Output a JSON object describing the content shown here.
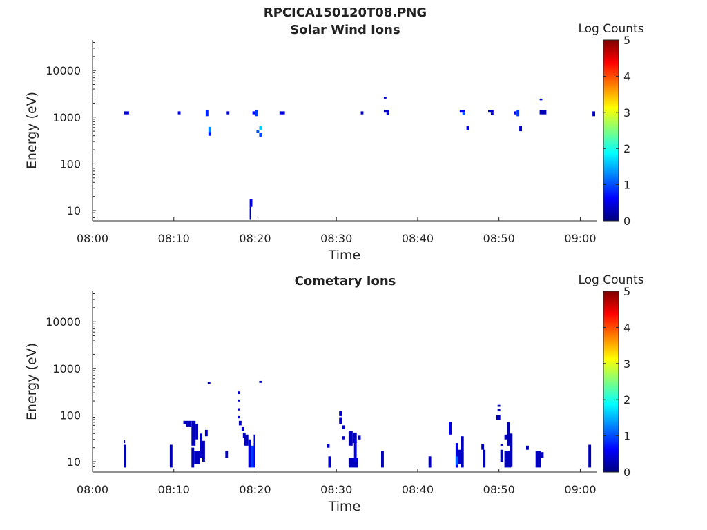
{
  "figure_title": "RPCICA150120T08.PNG",
  "colors": {
    "colormap": [
      "#00007f",
      "#0000ff",
      "#007fff",
      "#00ffff",
      "#7fff7f",
      "#ffff00",
      "#ff7f00",
      "#ff0000",
      "#7f0000"
    ],
    "axis": "#262626",
    "background": "#ffffff"
  },
  "chart_data": [
    {
      "type": "heatmap",
      "title": "Solar Wind Ions",
      "xlabel": "Time",
      "ylabel": "Energy (eV)",
      "x_scale": "time",
      "y_scale": "log",
      "xlim": [
        "08:00",
        "09:02"
      ],
      "ylim": [
        6,
        45000
      ],
      "x_ticks": [
        "08:00",
        "08:10",
        "08:20",
        "08:30",
        "08:40",
        "08:50",
        "09:00"
      ],
      "y_ticks": [
        10,
        100,
        1000,
        10000
      ],
      "y_tick_labels": [
        "10",
        "100",
        "1000",
        "10000"
      ],
      "colorbar": {
        "label": "Log Counts",
        "min": 0,
        "max": 5,
        "ticks": [
          "0",
          "1",
          "2",
          "3",
          "4",
          "5"
        ]
      },
      "cells": [
        {
          "t": "08:03:50",
          "t2": "08:04:30",
          "e": 1150,
          "e2": 1330,
          "v": 0.4
        },
        {
          "t": "08:10:30",
          "t2": "08:10:50",
          "e": 1150,
          "e2": 1330,
          "v": 0.5
        },
        {
          "t": "08:13:55",
          "t2": "08:14:15",
          "e": 1050,
          "e2": 1400,
          "v": 0.8
        },
        {
          "t": "08:14:15",
          "t2": "08:14:35",
          "e": 480,
          "e2": 620,
          "v": 1.3
        },
        {
          "t": "08:14:15",
          "t2": "08:14:35",
          "e": 400,
          "e2": 480,
          "v": 0.7
        },
        {
          "t": "08:16:30",
          "t2": "08:16:50",
          "e": 1150,
          "e2": 1330,
          "v": 0.4
        },
        {
          "t": "08:19:40",
          "t2": "08:20:00",
          "e": 1150,
          "e2": 1330,
          "v": 0.6
        },
        {
          "t": "08:20:00",
          "t2": "08:20:20",
          "e": 1050,
          "e2": 1400,
          "v": 0.9
        },
        {
          "t": "08:20:10",
          "t2": "08:20:30",
          "e": 470,
          "e2": 520,
          "v": 1.0
        },
        {
          "t": "08:20:30",
          "t2": "08:20:50",
          "e": 540,
          "e2": 640,
          "v": 1.6
        },
        {
          "t": "08:20:30",
          "t2": "08:20:50",
          "e": 380,
          "e2": 470,
          "v": 1.0
        },
        {
          "t": "08:23:00",
          "t2": "08:23:40",
          "e": 1150,
          "e2": 1330,
          "v": 0.5
        },
        {
          "t": "08:19:20",
          "t2": "08:19:40",
          "e": 12,
          "e2": 17.5,
          "v": 0.5
        },
        {
          "t": "08:19:20",
          "t2": "08:19:32",
          "e": 6.3,
          "e2": 12,
          "v": 0.2
        },
        {
          "t": "08:33:00",
          "t2": "08:33:20",
          "e": 1150,
          "e2": 1330,
          "v": 0.4
        },
        {
          "t": "08:35:50",
          "t2": "08:36:10",
          "e": 2500,
          "e2": 2750,
          "v": 0.4
        },
        {
          "t": "08:35:50",
          "t2": "08:36:30",
          "e": 1250,
          "e2": 1420,
          "v": 0.3
        },
        {
          "t": "08:36:10",
          "t2": "08:36:30",
          "e": 1100,
          "e2": 1250,
          "v": 0.3
        },
        {
          "t": "08:45:10",
          "t2": "08:45:50",
          "e": 1250,
          "e2": 1420,
          "v": 0.6
        },
        {
          "t": "08:45:30",
          "t2": "08:45:50",
          "e": 1100,
          "e2": 1250,
          "v": 1.0
        },
        {
          "t": "08:46:00",
          "t2": "08:46:20",
          "e": 520,
          "e2": 640,
          "v": 0.4
        },
        {
          "t": "08:48:40",
          "t2": "08:49:20",
          "e": 1250,
          "e2": 1420,
          "v": 0.4
        },
        {
          "t": "08:49:00",
          "t2": "08:49:20",
          "e": 1100,
          "e2": 1250,
          "v": 0.4
        },
        {
          "t": "08:51:50",
          "t2": "08:52:10",
          "e": 1150,
          "e2": 1330,
          "v": 0.6
        },
        {
          "t": "08:52:10",
          "t2": "08:52:30",
          "e": 1050,
          "e2": 1420,
          "v": 0.9
        },
        {
          "t": "08:52:30",
          "t2": "08:52:50",
          "e": 500,
          "e2": 650,
          "v": 0.4
        },
        {
          "t": "08:55:00",
          "t2": "08:55:20",
          "e": 2300,
          "e2": 2500,
          "v": 0.4
        },
        {
          "t": "08:55:00",
          "t2": "08:55:50",
          "e": 1150,
          "e2": 1420,
          "v": 0.3
        },
        {
          "t": "09:01:30",
          "t2": "09:01:50",
          "e": 1050,
          "e2": 1330,
          "v": 0.4
        }
      ]
    },
    {
      "type": "heatmap",
      "title": "Cometary Ions",
      "xlabel": "Time",
      "ylabel": "Energy (eV)",
      "x_scale": "time",
      "y_scale": "log",
      "xlim": [
        "08:00",
        "09:02"
      ],
      "ylim": [
        6,
        45000
      ],
      "x_ticks": [
        "08:00",
        "08:10",
        "08:20",
        "08:30",
        "08:40",
        "08:50",
        "09:00"
      ],
      "y_ticks": [
        10,
        100,
        1000,
        10000
      ],
      "y_tick_labels": [
        "10",
        "100",
        "1000",
        "10000"
      ],
      "colorbar": {
        "label": "Log Counts",
        "min": 0,
        "max": 5,
        "ticks": [
          "0",
          "1",
          "2",
          "3",
          "4",
          "5"
        ]
      },
      "cells": [
        {
          "t": "08:03:50",
          "t2": "08:04:10",
          "e": 7.5,
          "e2": 23,
          "v": 0.3
        },
        {
          "t": "08:03:50",
          "t2": "08:04:00",
          "e": 25,
          "e2": 29,
          "v": 0.3
        },
        {
          "t": "08:09:30",
          "t2": "08:09:50",
          "e": 7.5,
          "e2": 23,
          "v": 0.3
        },
        {
          "t": "08:11:10",
          "t2": "08:11:30",
          "e": 65,
          "e2": 75,
          "v": 0.3
        },
        {
          "t": "08:11:30",
          "t2": "08:12:10",
          "e": 55,
          "e2": 75,
          "v": 0.3
        },
        {
          "t": "08:12:10",
          "t2": "08:12:40",
          "e": 22,
          "e2": 75,
          "v": 0.3
        },
        {
          "t": "08:12:40",
          "t2": "08:13:00",
          "e": 30,
          "e2": 65,
          "v": 0.3
        },
        {
          "t": "08:12:10",
          "t2": "08:12:30",
          "e": 7.5,
          "e2": 20,
          "v": 0.3
        },
        {
          "t": "08:12:30",
          "t2": "08:13:10",
          "e": 9,
          "e2": 17,
          "v": 0.3
        },
        {
          "t": "08:13:10",
          "t2": "08:13:30",
          "e": 12,
          "e2": 40,
          "v": 0.4
        },
        {
          "t": "08:13:30",
          "t2": "08:13:50",
          "e": 10,
          "e2": 28,
          "v": 0.3
        },
        {
          "t": "08:13:50",
          "t2": "08:14:10",
          "e": 35,
          "e2": 48,
          "v": 0.3
        },
        {
          "t": "08:14:10",
          "t2": "08:14:30",
          "e": 470,
          "e2": 520,
          "v": 0.3
        },
        {
          "t": "08:16:20",
          "t2": "08:16:40",
          "e": 12,
          "e2": 17,
          "v": 0.3
        },
        {
          "t": "08:17:50",
          "t2": "08:18:10",
          "e": 280,
          "e2": 320,
          "v": 0.3
        },
        {
          "t": "08:17:50",
          "t2": "08:18:10",
          "e": 195,
          "e2": 215,
          "v": 0.3
        },
        {
          "t": "08:17:50",
          "t2": "08:18:10",
          "e": 125,
          "e2": 140,
          "v": 0.3
        },
        {
          "t": "08:17:50",
          "t2": "08:18:10",
          "e": 85,
          "e2": 95,
          "v": 0.3
        },
        {
          "t": "08:18:00",
          "t2": "08:18:20",
          "e": 60,
          "e2": 75,
          "v": 0.3
        },
        {
          "t": "08:18:20",
          "t2": "08:18:40",
          "e": 45,
          "e2": 55,
          "v": 0.3
        },
        {
          "t": "08:18:30",
          "t2": "08:18:50",
          "e": 32,
          "e2": 42,
          "v": 0.3
        },
        {
          "t": "08:18:40",
          "t2": "08:19:10",
          "e": 22,
          "e2": 38,
          "v": 0.3
        },
        {
          "t": "08:19:10",
          "t2": "08:19:30",
          "e": 7.5,
          "e2": 30,
          "v": 0.4
        },
        {
          "t": "08:19:30",
          "t2": "08:19:50",
          "e": 7.5,
          "e2": 22,
          "v": 0.9
        },
        {
          "t": "08:19:50",
          "t2": "08:20:00",
          "e": 7.5,
          "e2": 38,
          "v": 0.5
        },
        {
          "t": "08:20:30",
          "t2": "08:20:50",
          "e": 490,
          "e2": 540,
          "v": 0.3
        },
        {
          "t": "08:28:50",
          "t2": "08:29:10",
          "e": 20,
          "e2": 24,
          "v": 0.3
        },
        {
          "t": "08:29:00",
          "t2": "08:29:20",
          "e": 7.5,
          "e2": 13,
          "v": 0.3
        },
        {
          "t": "08:30:20",
          "t2": "08:30:40",
          "e": 95,
          "e2": 120,
          "v": 0.3
        },
        {
          "t": "08:30:20",
          "t2": "08:30:40",
          "e": 65,
          "e2": 90,
          "v": 0.3
        },
        {
          "t": "08:30:40",
          "t2": "08:31:00",
          "e": 50,
          "e2": 60,
          "v": 0.3
        },
        {
          "t": "08:30:40",
          "t2": "08:31:00",
          "e": 30,
          "e2": 35,
          "v": 0.3
        },
        {
          "t": "08:31:30",
          "t2": "08:32:00",
          "e": 22,
          "e2": 45,
          "v": 0.3
        },
        {
          "t": "08:32:00",
          "t2": "08:32:30",
          "e": 25,
          "e2": 42,
          "v": 0.3
        },
        {
          "t": "08:31:30",
          "t2": "08:32:40",
          "e": 7.5,
          "e2": 12,
          "v": 0.3
        },
        {
          "t": "08:32:10",
          "t2": "08:32:30",
          "e": 10,
          "e2": 30,
          "v": 0.6
        },
        {
          "t": "08:32:40",
          "t2": "08:33:00",
          "e": 30,
          "e2": 36,
          "v": 0.3
        },
        {
          "t": "08:35:30",
          "t2": "08:35:50",
          "e": 7.5,
          "e2": 17,
          "v": 0.3
        },
        {
          "t": "08:41:20",
          "t2": "08:41:40",
          "e": 7.5,
          "e2": 13,
          "v": 0.3
        },
        {
          "t": "08:43:50",
          "t2": "08:44:10",
          "e": 38,
          "e2": 70,
          "v": 0.5
        },
        {
          "t": "08:44:40",
          "t2": "08:45:00",
          "e": 7.5,
          "e2": 25,
          "v": 0.4
        },
        {
          "t": "08:44:40",
          "t2": "08:45:00",
          "e": 8.5,
          "e2": 13,
          "v": 1.1
        },
        {
          "t": "08:45:00",
          "t2": "08:45:20",
          "e": 9,
          "e2": 18,
          "v": 0.4
        },
        {
          "t": "08:45:20",
          "t2": "08:45:40",
          "e": 7.5,
          "e2": 35,
          "v": 0.3
        },
        {
          "t": "08:47:50",
          "t2": "08:48:10",
          "e": 18,
          "e2": 24,
          "v": 0.3
        },
        {
          "t": "08:48:00",
          "t2": "08:48:20",
          "e": 7.5,
          "e2": 18,
          "v": 0.3
        },
        {
          "t": "08:49:50",
          "t2": "08:50:10",
          "e": 150,
          "e2": 165,
          "v": 0.3
        },
        {
          "t": "08:49:50",
          "t2": "08:50:10",
          "e": 120,
          "e2": 135,
          "v": 0.3
        },
        {
          "t": "08:49:40",
          "t2": "08:50:10",
          "e": 80,
          "e2": 100,
          "v": 0.3
        },
        {
          "t": "08:50:10",
          "t2": "08:50:30",
          "e": 22,
          "e2": 24,
          "v": 0.3
        },
        {
          "t": "08:50:10",
          "t2": "08:50:30",
          "e": 10,
          "e2": 18,
          "v": 0.3
        },
        {
          "t": "08:50:40",
          "t2": "08:51:00",
          "e": 30,
          "e2": 38,
          "v": 0.3
        },
        {
          "t": "08:51:00",
          "t2": "08:51:20",
          "e": 22,
          "e2": 70,
          "v": 0.3
        },
        {
          "t": "08:50:40",
          "t2": "08:51:30",
          "e": 7.5,
          "e2": 17,
          "v": 0.3
        },
        {
          "t": "08:51:20",
          "t2": "08:51:40",
          "e": 8,
          "e2": 40,
          "v": 0.3
        },
        {
          "t": "08:53:20",
          "t2": "08:53:40",
          "e": 18,
          "e2": 22,
          "v": 0.3
        },
        {
          "t": "08:54:30",
          "t2": "08:55:10",
          "e": 7.5,
          "e2": 17,
          "v": 0.3
        },
        {
          "t": "08:55:10",
          "t2": "08:55:30",
          "e": 12,
          "e2": 16,
          "v": 0.3
        },
        {
          "t": "09:01:00",
          "t2": "09:01:20",
          "e": 7.5,
          "e2": 23,
          "v": 0.3
        }
      ]
    }
  ]
}
